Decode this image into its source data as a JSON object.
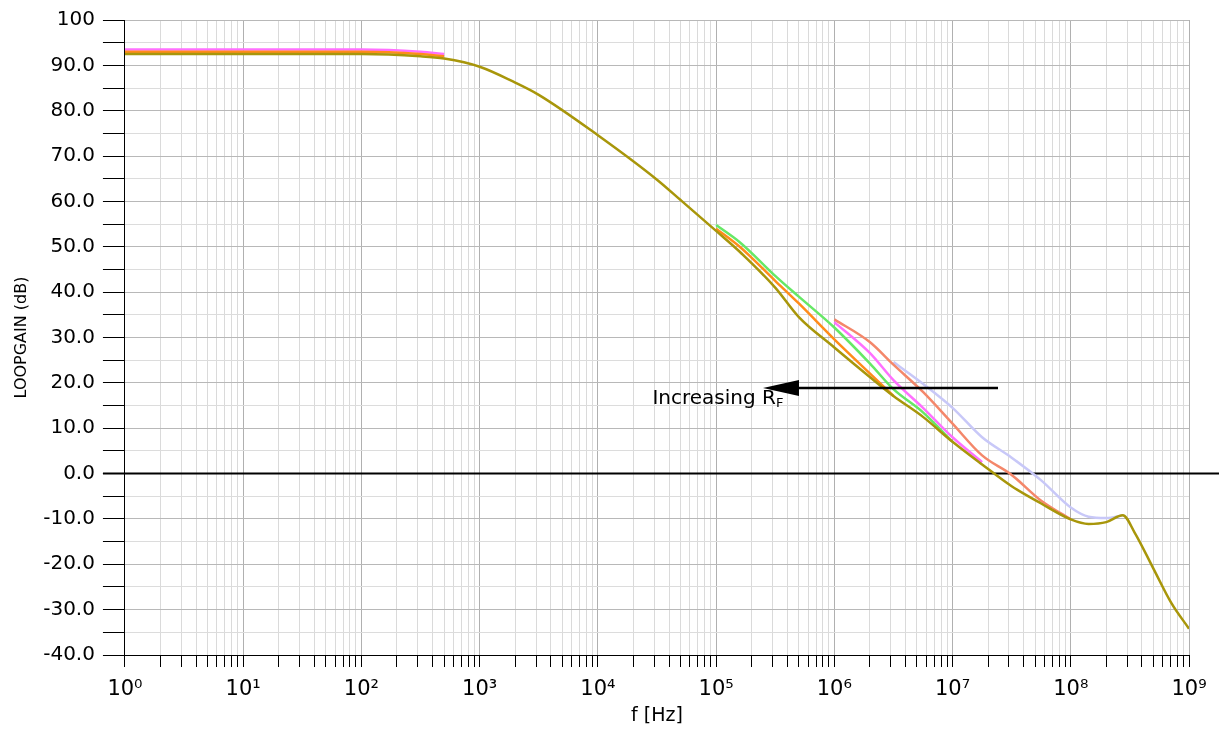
{
  "chart_data": {
    "type": "line",
    "xlabel": "f [Hz]",
    "ylabel": "LOOPGAIN (dB)",
    "x": [
      1,
      100,
      316,
      501,
      1000,
      2000,
      3162,
      10000,
      31623,
      50119,
      100000,
      158489,
      316228,
      501187,
      1000000,
      1995262,
      3162278,
      5623413,
      10000000,
      17782794,
      31622777,
      56234133,
      100000000,
      141253754,
      199526231,
      275422870,
      346736850,
      501187234,
      707945784,
      1000000000
    ],
    "series": [
      {
        "color": "#c8c8f8",
        "values": [
          null,
          null,
          null,
          null,
          null,
          null,
          null,
          null,
          null,
          null,
          null,
          null,
          null,
          null,
          null,
          null,
          24.6,
          19.8,
          14.5,
          8,
          3.5,
          -1.5,
          -7.5,
          -9.5,
          -9.8,
          -9.2,
          null,
          null,
          null,
          null
        ]
      },
      {
        "color": "#f4876a",
        "values": [
          null,
          null,
          null,
          null,
          null,
          null,
          null,
          null,
          null,
          null,
          null,
          null,
          null,
          null,
          34,
          29,
          24,
          18,
          11,
          4,
          -0.3,
          -6,
          -10.1,
          null,
          null,
          null,
          null,
          null,
          null,
          null
        ]
      },
      {
        "color": "#ff70ff",
        "values": [
          93.5,
          93.5,
          93,
          92.5,
          null,
          null,
          null,
          null,
          null,
          null,
          null,
          null,
          null,
          null,
          33.4,
          26.6,
          20.6,
          14.5,
          8,
          2.5,
          null,
          null,
          null,
          null,
          null,
          null,
          null,
          null,
          null,
          null
        ]
      },
      {
        "color": "#66e866",
        "values": [
          null,
          null,
          null,
          null,
          null,
          null,
          null,
          null,
          null,
          null,
          54.8,
          51,
          43.6,
          39,
          32.2,
          24.3,
          18.6,
          13.5,
          7,
          null,
          null,
          null,
          null,
          null,
          null,
          null,
          null,
          null,
          null,
          null
        ]
      },
      {
        "color": "#ff8c1a",
        "values": [
          93,
          93,
          92.5,
          92,
          null,
          null,
          null,
          null,
          null,
          null,
          54,
          50,
          42.5,
          37.5,
          29.6,
          22.1,
          17.1,
          null,
          null,
          null,
          null,
          null,
          null,
          null,
          null,
          null,
          null,
          null,
          null,
          null
        ]
      },
      {
        "color": "#a8960a",
        "values": [
          92.5,
          92.5,
          92,
          91.5,
          89.7,
          86.2,
          83.5,
          74.6,
          64.8,
          60.3,
          53.5,
          48.9,
          41,
          34.5,
          27.8,
          21.3,
          17.1,
          12.5,
          7,
          2,
          -2.8,
          -6.6,
          -10.1,
          -11.1,
          -10.7,
          -9.2,
          -13,
          -21,
          -28.5,
          -34.2
        ]
      }
    ],
    "log": "x",
    "xlim": [
      1,
      1000000000
    ],
    "xticks": [
      {
        "value": 1,
        "label": "10⁰"
      },
      {
        "value": 10,
        "label": "10¹"
      },
      {
        "value": 100,
        "label": "10²"
      },
      {
        "value": 1000,
        "label": "10³"
      },
      {
        "value": 10000,
        "label": "10⁴"
      },
      {
        "value": 100000,
        "label": "10⁵"
      },
      {
        "value": 1000000,
        "label": "10⁶"
      },
      {
        "value": 10000000,
        "label": "10⁷"
      },
      {
        "value": 100000000,
        "label": "10⁸"
      },
      {
        "value": 1000000000,
        "label": "10⁹"
      }
    ],
    "ylim": [
      -40,
      100
    ],
    "yticks": [
      {
        "value": -40,
        "label": "-40.0"
      },
      {
        "value": -30,
        "label": "-30.0"
      },
      {
        "value": -20,
        "label": "-20.0"
      },
      {
        "value": -10,
        "label": "-10.0"
      },
      {
        "value": 0,
        "label": "0.0"
      },
      {
        "value": 10,
        "label": "10.0"
      },
      {
        "value": 20,
        "label": "20.0"
      },
      {
        "value": 30,
        "label": "30.0"
      },
      {
        "value": 40,
        "label": "40.0"
      },
      {
        "value": 50,
        "label": "50.0"
      },
      {
        "value": 60,
        "label": "60.0"
      },
      {
        "value": 70,
        "label": "70.0"
      },
      {
        "value": 80,
        "label": "80.0"
      },
      {
        "value": 90,
        "label": "90.0"
      },
      100
    ],
    "grid": true,
    "legend": false,
    "ref_lines": [
      {
        "axis": "y",
        "value": 0,
        "color": "#000000"
      }
    ],
    "annotations": [
      "Increasing R$_{F}$"
    ]
  }
}
